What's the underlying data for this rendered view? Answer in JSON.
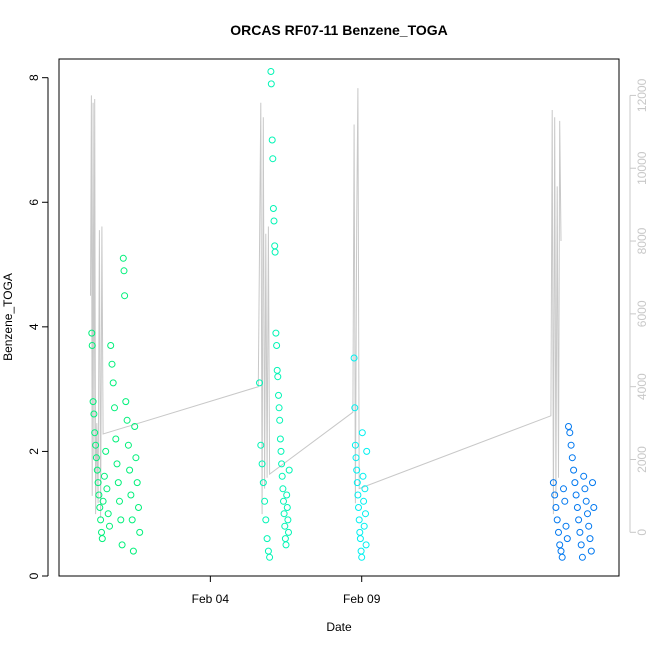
{
  "chart_data": {
    "type": "scatter",
    "title": "ORCAS RF07-11 Benzene_TOGA",
    "xlabel": "Date",
    "ylabel": "Benzene_TOGA",
    "x_ticks": [
      "Feb 04",
      "Feb 09"
    ],
    "x_range": [
      "2016-01-30T00:00",
      "2016-02-17T12:00"
    ],
    "ylim": [
      0,
      8.3
    ],
    "y_ticks": [
      0,
      2,
      4,
      6,
      8
    ],
    "y2_ticks": [
      0,
      2000,
      4000,
      6000,
      8000,
      10000,
      12000
    ],
    "y2lim": [
      -1200,
      13000
    ],
    "grid": false,
    "series": [
      {
        "color": "#00f07a",
        "points": [
          [
            "2016-01-31T02:00",
            3.9
          ],
          [
            "2016-01-31T02:20",
            3.7
          ],
          [
            "2016-01-31T03:00",
            2.8
          ],
          [
            "2016-01-31T03:40",
            2.6
          ],
          [
            "2016-01-31T04:20",
            2.3
          ],
          [
            "2016-01-31T05:00",
            2.1
          ],
          [
            "2016-01-31T05:40",
            1.9
          ],
          [
            "2016-01-31T06:20",
            1.7
          ],
          [
            "2016-01-31T07:00",
            1.5
          ],
          [
            "2016-01-31T07:40",
            1.3
          ],
          [
            "2016-01-31T08:20",
            1.1
          ],
          [
            "2016-01-31T09:00",
            0.9
          ],
          [
            "2016-01-31T09:40",
            0.7
          ],
          [
            "2016-01-31T10:20",
            0.6
          ],
          [
            "2016-01-31T11:00",
            1.2
          ],
          [
            "2016-01-31T12:00",
            1.6
          ],
          [
            "2016-01-31T13:00",
            2.0
          ],
          [
            "2016-01-31T14:00",
            1.4
          ],
          [
            "2016-01-31T15:00",
            1.0
          ],
          [
            "2016-01-31T16:00",
            0.8
          ],
          [
            "2016-01-31T17:00",
            3.7
          ],
          [
            "2016-01-31T18:00",
            3.4
          ],
          [
            "2016-01-31T19:00",
            3.1
          ],
          [
            "2016-01-31T20:00",
            2.7
          ],
          [
            "2016-01-31T21:00",
            2.2
          ],
          [
            "2016-01-31T22:00",
            1.8
          ],
          [
            "2016-01-31T23:00",
            1.5
          ],
          [
            "2016-02-01T00:00",
            1.2
          ],
          [
            "2016-02-01T01:00",
            0.9
          ],
          [
            "2016-02-01T02:00",
            0.5
          ],
          [
            "2016-02-01T03:00",
            5.1
          ],
          [
            "2016-02-01T03:30",
            4.9
          ],
          [
            "2016-02-01T04:00",
            4.5
          ],
          [
            "2016-02-01T05:00",
            2.8
          ],
          [
            "2016-02-01T06:00",
            2.5
          ],
          [
            "2016-02-01T07:00",
            2.1
          ],
          [
            "2016-02-01T08:00",
            1.7
          ],
          [
            "2016-02-01T09:00",
            1.3
          ],
          [
            "2016-02-01T10:00",
            0.9
          ],
          [
            "2016-02-01T11:00",
            0.4
          ],
          [
            "2016-02-01T12:00",
            2.4
          ],
          [
            "2016-02-01T13:00",
            1.9
          ],
          [
            "2016-02-01T14:00",
            1.5
          ],
          [
            "2016-02-01T15:00",
            1.1
          ],
          [
            "2016-02-01T16:00",
            0.7
          ]
        ]
      },
      {
        "color": "#00f5b5",
        "points": [
          [
            "2016-02-05T15:00",
            3.1
          ],
          [
            "2016-02-05T16:00",
            2.1
          ],
          [
            "2016-02-05T17:00",
            1.8
          ],
          [
            "2016-02-05T18:00",
            1.5
          ],
          [
            "2016-02-05T19:00",
            1.2
          ],
          [
            "2016-02-05T20:00",
            0.9
          ],
          [
            "2016-02-05T21:00",
            0.6
          ],
          [
            "2016-02-05T22:00",
            0.4
          ],
          [
            "2016-02-05T23:00",
            0.3
          ],
          [
            "2016-02-06T00:00",
            8.1
          ],
          [
            "2016-02-06T00:20",
            7.9
          ],
          [
            "2016-02-06T01:00",
            7.0
          ],
          [
            "2016-02-06T01:30",
            6.7
          ],
          [
            "2016-02-06T02:00",
            5.9
          ],
          [
            "2016-02-06T02:30",
            5.7
          ],
          [
            "2016-02-06T03:00",
            5.3
          ],
          [
            "2016-02-06T03:20",
            5.2
          ],
          [
            "2016-02-06T04:00",
            3.9
          ],
          [
            "2016-02-06T04:30",
            3.7
          ],
          [
            "2016-02-06T05:00",
            3.3
          ],
          [
            "2016-02-06T05:30",
            3.2
          ],
          [
            "2016-02-06T06:00",
            2.9
          ],
          [
            "2016-02-06T06:30",
            2.7
          ],
          [
            "2016-02-06T07:00",
            2.5
          ],
          [
            "2016-02-06T07:30",
            2.2
          ],
          [
            "2016-02-06T08:00",
            2.0
          ],
          [
            "2016-02-06T08:30",
            1.8
          ],
          [
            "2016-02-06T09:00",
            1.6
          ],
          [
            "2016-02-06T09:30",
            1.4
          ],
          [
            "2016-02-06T10:00",
            1.2
          ],
          [
            "2016-02-06T10:30",
            1.0
          ],
          [
            "2016-02-06T11:00",
            0.8
          ],
          [
            "2016-02-06T11:30",
            0.6
          ],
          [
            "2016-02-06T12:00",
            0.5
          ],
          [
            "2016-02-06T12:30",
            1.3
          ],
          [
            "2016-02-06T13:00",
            1.1
          ],
          [
            "2016-02-06T13:30",
            0.9
          ],
          [
            "2016-02-06T14:00",
            0.7
          ],
          [
            "2016-02-06T14:30",
            1.7
          ]
        ]
      },
      {
        "color": "#00f0f0",
        "points": [
          [
            "2016-02-08T18:00",
            3.5
          ],
          [
            "2016-02-08T18:30",
            2.7
          ],
          [
            "2016-02-08T19:00",
            2.1
          ],
          [
            "2016-02-08T19:30",
            1.9
          ],
          [
            "2016-02-08T20:00",
            1.7
          ],
          [
            "2016-02-08T20:30",
            1.5
          ],
          [
            "2016-02-08T21:00",
            1.3
          ],
          [
            "2016-02-08T21:30",
            1.1
          ],
          [
            "2016-02-08T22:00",
            0.9
          ],
          [
            "2016-02-08T22:30",
            0.7
          ],
          [
            "2016-02-08T23:00",
            0.6
          ],
          [
            "2016-02-08T23:30",
            0.4
          ],
          [
            "2016-02-09T00:00",
            0.3
          ],
          [
            "2016-02-09T00:30",
            2.3
          ],
          [
            "2016-02-09T01:00",
            1.6
          ],
          [
            "2016-02-09T01:30",
            1.2
          ],
          [
            "2016-02-09T02:00",
            0.8
          ],
          [
            "2016-02-09T02:30",
            1.4
          ],
          [
            "2016-02-09T03:00",
            1.0
          ],
          [
            "2016-02-09T03:30",
            0.5
          ],
          [
            "2016-02-09T04:00",
            2.0
          ]
        ]
      },
      {
        "color": "#0078f0",
        "points": [
          [
            "2016-02-15T08:00",
            1.5
          ],
          [
            "2016-02-15T09:00",
            1.3
          ],
          [
            "2016-02-15T10:00",
            1.1
          ],
          [
            "2016-02-15T11:00",
            0.9
          ],
          [
            "2016-02-15T12:00",
            0.7
          ],
          [
            "2016-02-15T13:00",
            0.5
          ],
          [
            "2016-02-15T14:00",
            0.4
          ],
          [
            "2016-02-15T15:00",
            0.3
          ],
          [
            "2016-02-15T16:00",
            1.4
          ],
          [
            "2016-02-15T17:00",
            1.2
          ],
          [
            "2016-02-15T18:00",
            0.8
          ],
          [
            "2016-02-15T19:00",
            0.6
          ],
          [
            "2016-02-15T20:00",
            2.4
          ],
          [
            "2016-02-15T21:00",
            2.3
          ],
          [
            "2016-02-15T22:00",
            2.1
          ],
          [
            "2016-02-15T23:00",
            1.9
          ],
          [
            "2016-02-16T00:00",
            1.7
          ],
          [
            "2016-02-16T01:00",
            1.5
          ],
          [
            "2016-02-16T02:00",
            1.3
          ],
          [
            "2016-02-16T03:00",
            1.1
          ],
          [
            "2016-02-16T04:00",
            0.9
          ],
          [
            "2016-02-16T05:00",
            0.7
          ],
          [
            "2016-02-16T06:00",
            0.5
          ],
          [
            "2016-02-16T07:00",
            0.3
          ],
          [
            "2016-02-16T08:00",
            1.6
          ],
          [
            "2016-02-16T09:00",
            1.4
          ],
          [
            "2016-02-16T10:00",
            1.2
          ],
          [
            "2016-02-16T11:00",
            1.0
          ],
          [
            "2016-02-16T12:00",
            0.8
          ],
          [
            "2016-02-16T13:00",
            0.6
          ],
          [
            "2016-02-16T14:00",
            0.4
          ],
          [
            "2016-02-16T15:00",
            1.5
          ],
          [
            "2016-02-16T16:00",
            1.1
          ]
        ]
      }
    ],
    "overlay_line": {
      "color": "#c8c8c8",
      "points": [
        [
          "2016-01-31T01:00",
          6500
        ],
        [
          "2016-01-31T01:40",
          12000
        ],
        [
          "2016-01-31T02:20",
          1000
        ],
        [
          "2016-01-31T03:00",
          11800
        ],
        [
          "2016-01-31T03:40",
          2000
        ],
        [
          "2016-01-31T04:20",
          11900
        ],
        [
          "2016-01-31T05:00",
          500
        ],
        [
          "2016-01-31T06:00",
          3000
        ],
        [
          "2016-01-31T07:00",
          800
        ],
        [
          "2016-01-31T08:00",
          8300
        ],
        [
          "2016-01-31T09:00",
          400
        ],
        [
          "2016-01-31T10:00",
          8400
        ],
        [
          "2016-01-31T11:00",
          2700
        ],
        [
          "2016-02-05T14:00",
          4000
        ],
        [
          "2016-02-05T16:00",
          11800
        ],
        [
          "2016-02-05T17:00",
          500
        ],
        [
          "2016-02-05T18:00",
          11400
        ],
        [
          "2016-02-05T19:00",
          1200
        ],
        [
          "2016-02-05T20:00",
          8200
        ],
        [
          "2016-02-05T21:00",
          1500
        ],
        [
          "2016-02-05T22:00",
          8400
        ],
        [
          "2016-02-05T23:00",
          1600
        ],
        [
          "2016-02-08T17:00",
          3300
        ],
        [
          "2016-02-08T18:00",
          11200
        ],
        [
          "2016-02-08T19:00",
          800
        ],
        [
          "2016-02-08T20:00",
          8500
        ],
        [
          "2016-02-08T21:00",
          12200
        ],
        [
          "2016-02-08T22:00",
          1200
        ],
        [
          "2016-02-15T06:00",
          3200
        ],
        [
          "2016-02-15T07:00",
          11600
        ],
        [
          "2016-02-15T08:00",
          500
        ],
        [
          "2016-02-15T09:00",
          11400
        ],
        [
          "2016-02-15T10:00",
          1000
        ],
        [
          "2016-02-15T11:00",
          9500
        ],
        [
          "2016-02-15T12:00",
          1500
        ],
        [
          "2016-02-15T13:00",
          11300
        ],
        [
          "2016-02-15T14:00",
          8000
        ]
      ]
    }
  }
}
